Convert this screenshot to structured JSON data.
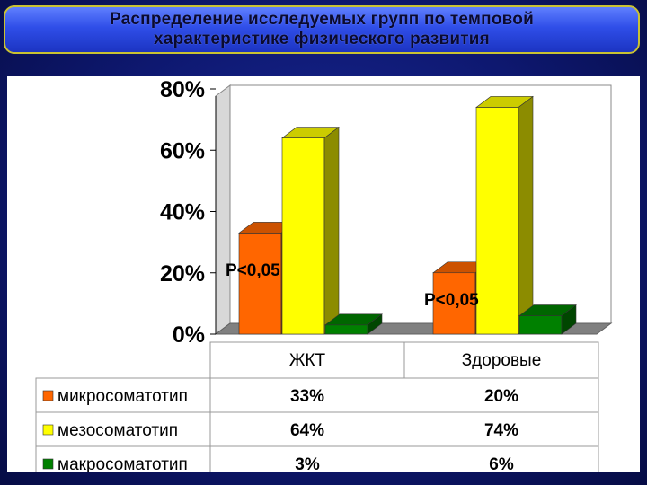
{
  "header": {
    "title": "Распределение исследуемых групп по темповой\nхарактеристике физического развития"
  },
  "chart_data": {
    "type": "bar",
    "categories": [
      "ЖКТ",
      "Здоровые"
    ],
    "series": [
      {
        "name": "микросоматотип",
        "values": [
          33,
          20
        ],
        "labels": [
          "33%",
          "20%"
        ],
        "color": "#ff6600"
      },
      {
        "name": "мезосоматотип",
        "values": [
          64,
          74
        ],
        "labels": [
          "64%",
          "74%"
        ],
        "color": "#ffff00"
      },
      {
        "name": "макросоматотип",
        "values": [
          3,
          6
        ],
        "labels": [
          "3%",
          "6%"
        ],
        "color": "#008000"
      }
    ],
    "yticks": [
      "0%",
      "20%",
      "40%",
      "60%",
      "80%"
    ],
    "ylim": [
      0,
      80
    ],
    "annotations": [
      "P<0,05",
      "P<0,05"
    ],
    "data_table": true,
    "grid": false,
    "legend": "in data table"
  }
}
